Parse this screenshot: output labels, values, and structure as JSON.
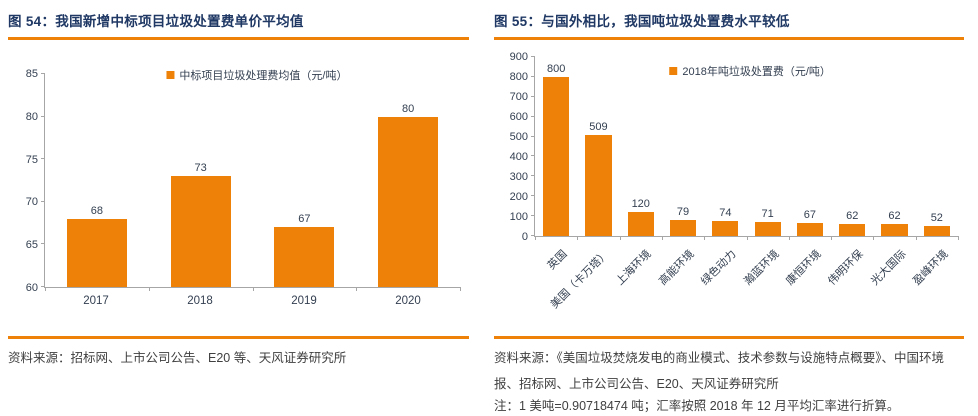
{
  "figures": [
    {
      "title": "图 54：我国新增中标项目垃圾处置费单价平均值",
      "source": "资料来源：招标网、上市公司公告、E20 等、天风证券研究所"
    },
    {
      "title": "图 55：与国外相比，我国吨垃圾处置费水平较低",
      "source": "资料来源：《美国垃圾焚烧发电的商业模式、技术参数与设施特点概要》、中国环境报、招标网、上市公司公告、E20、天风证券研究所",
      "note": "注：1 美吨=0.90718474 吨；汇率按照 2018 年 12 月平均汇率进行折算。"
    }
  ],
  "chart_data": [
    {
      "type": "bar",
      "title": "图 54：我国新增中标项目垃圾处置费单价平均值",
      "legend": "中标项目垃圾处理费均值（元/吨）",
      "legend_position": "top-center",
      "categories": [
        "2017",
        "2018",
        "2019",
        "2020"
      ],
      "values": [
        68,
        73,
        67,
        80
      ],
      "ylim": [
        60,
        85
      ],
      "ytick_step": 5,
      "grid": false,
      "bar_color": "#EE8208",
      "bar_width_pct": 58,
      "xlabel_rotation": 0
    },
    {
      "type": "bar",
      "title": "图 55：与国外相比，我国吨垃圾处置费水平较低",
      "legend": "2018年吨垃圾处置费（元/吨）",
      "legend_position": "top-center",
      "categories": [
        "英国",
        "美国（卡万塔）",
        "上海环境",
        "高能环境",
        "绿色动力",
        "瀚蓝环境",
        "康恒环境",
        "伟明环保",
        "光大国际",
        "盈峰环境"
      ],
      "values": [
        800,
        509,
        120,
        79,
        74,
        71,
        67,
        62,
        62,
        52
      ],
      "ylim": [
        0,
        900
      ],
      "ytick_step": 100,
      "grid": false,
      "bar_color": "#EE8208",
      "bar_width_pct": 62,
      "xlabel_rotation": -45
    }
  ],
  "colors": {
    "accent_orange": "#EE8208",
    "title_navy": "#1F3864",
    "chart_text": "#333F50",
    "axis_gray": "#A6A6A6",
    "body_text": "#404040"
  }
}
